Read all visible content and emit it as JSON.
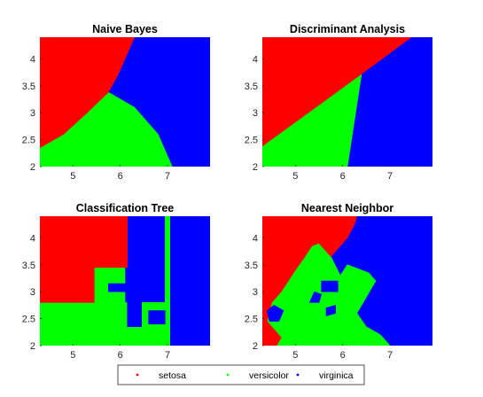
{
  "chart_data": [
    {
      "type": "area",
      "title": "Naive Bayes",
      "xlim": [
        4.3,
        7.9
      ],
      "ylim": [
        2.0,
        4.4
      ],
      "xticks": [
        "5",
        "6",
        "7"
      ],
      "yticks": [
        "2",
        "2.5",
        "3",
        "3.5",
        "4"
      ],
      "regions": [
        {
          "class": "virginica",
          "color": "#0000ff",
          "polygon": [
            [
              4.3,
              2.0
            ],
            [
              7.9,
              2.0
            ],
            [
              7.9,
              4.4
            ],
            [
              4.3,
              4.4
            ]
          ]
        },
        {
          "class": "versicolor",
          "color": "#00ff00",
          "polygon": [
            [
              4.3,
              2.0
            ],
            [
              7.1,
              2.0
            ],
            [
              6.8,
              2.6
            ],
            [
              6.3,
              3.1
            ],
            [
              5.75,
              3.38
            ],
            [
              5.3,
              3.0
            ],
            [
              4.8,
              2.6
            ],
            [
              4.3,
              2.35
            ]
          ]
        },
        {
          "class": "setosa",
          "color": "#ff0000",
          "polygon": [
            [
              4.3,
              2.35
            ],
            [
              4.8,
              2.6
            ],
            [
              5.3,
              3.0
            ],
            [
              5.75,
              3.38
            ],
            [
              5.95,
              3.7
            ],
            [
              6.3,
              4.4
            ],
            [
              4.3,
              4.4
            ]
          ]
        }
      ]
    },
    {
      "type": "area",
      "title": "Discriminant Analysis",
      "xlim": [
        4.3,
        7.9
      ],
      "ylim": [
        2.0,
        4.4
      ],
      "xticks": [
        "5",
        "6",
        "7"
      ],
      "yticks": [
        "2",
        "2.5",
        "3",
        "3.5",
        "4"
      ],
      "regions": [
        {
          "class": "virginica",
          "color": "#0000ff",
          "polygon": [
            [
              4.3,
              2.0
            ],
            [
              7.9,
              2.0
            ],
            [
              7.9,
              4.4
            ],
            [
              4.3,
              4.4
            ]
          ]
        },
        {
          "class": "versicolor",
          "color": "#00ff00",
          "polygon": [
            [
              4.3,
              2.0
            ],
            [
              6.1,
              2.0
            ],
            [
              6.4,
              3.72
            ],
            [
              4.3,
              2.38
            ]
          ]
        },
        {
          "class": "setosa",
          "color": "#ff0000",
          "polygon": [
            [
              4.3,
              2.38
            ],
            [
              6.4,
              3.72
            ],
            [
              7.45,
              4.4
            ],
            [
              4.3,
              4.4
            ]
          ]
        }
      ]
    },
    {
      "type": "area",
      "title": "Classification Tree",
      "xlim": [
        4.3,
        7.9
      ],
      "ylim": [
        2.0,
        4.4
      ],
      "xticks": [
        "5",
        "6",
        "7"
      ],
      "yticks": [
        "2",
        "2.5",
        "3",
        "3.5",
        "4"
      ],
      "regions": [
        {
          "class": "virginica",
          "color": "#0000ff",
          "polygon": [
            [
              4.3,
              2.0
            ],
            [
              7.9,
              2.0
            ],
            [
              7.9,
              4.4
            ],
            [
              4.3,
              4.4
            ]
          ]
        },
        {
          "class": "versicolor",
          "color": "#00ff00",
          "polygon": [
            [
              4.3,
              2.0
            ],
            [
              7.05,
              2.0
            ],
            [
              7.05,
              4.4
            ],
            [
              6.95,
              4.4
            ],
            [
              6.95,
              2.8
            ],
            [
              6.1,
              2.8
            ],
            [
              6.1,
              3.45
            ],
            [
              5.45,
              3.45
            ],
            [
              5.45,
              2.8
            ],
            [
              4.3,
              2.8
            ]
          ]
        },
        {
          "class": "setosa",
          "color": "#ff0000",
          "polygon": [
            [
              4.3,
              2.8
            ],
            [
              5.45,
              2.8
            ],
            [
              5.45,
              3.45
            ],
            [
              6.15,
              3.45
            ],
            [
              6.15,
              4.4
            ],
            [
              4.3,
              4.4
            ]
          ]
        },
        {
          "class": "virginica",
          "color": "#0000ff",
          "polygon": [
            [
              5.75,
              3.0
            ],
            [
              6.6,
              3.0
            ],
            [
              6.6,
              3.15
            ],
            [
              5.75,
              3.15
            ]
          ]
        },
        {
          "class": "virginica",
          "color": "#0000ff",
          "polygon": [
            [
              6.5,
              2.85
            ],
            [
              6.6,
              2.85
            ],
            [
              6.6,
              3.0
            ],
            [
              6.5,
              3.0
            ]
          ]
        },
        {
          "class": "virginica",
          "color": "#0000ff",
          "polygon": [
            [
              6.15,
              2.35
            ],
            [
              6.45,
              2.35
            ],
            [
              6.45,
              2.85
            ],
            [
              6.15,
              2.85
            ]
          ]
        },
        {
          "class": "virginica",
          "color": "#0000ff",
          "polygon": [
            [
              6.6,
              2.4
            ],
            [
              6.95,
              2.4
            ],
            [
              6.95,
              2.65
            ],
            [
              6.6,
              2.65
            ]
          ]
        }
      ]
    },
    {
      "type": "area",
      "title": "Nearest Neighbor",
      "xlim": [
        4.3,
        7.9
      ],
      "ylim": [
        2.0,
        4.4
      ],
      "xticks": [
        "5",
        "6",
        "7"
      ],
      "yticks": [
        "2",
        "2.5",
        "3",
        "3.5",
        "4"
      ],
      "regions": [
        {
          "class": "virginica",
          "color": "#0000ff",
          "polygon": [
            [
              4.3,
              2.0
            ],
            [
              7.9,
              2.0
            ],
            [
              7.9,
              4.4
            ],
            [
              4.3,
              4.4
            ]
          ]
        },
        {
          "class": "versicolor",
          "color": "#00ff00",
          "polygon": [
            [
              4.6,
              2.0
            ],
            [
              7.0,
              2.0
            ],
            [
              6.8,
              2.2
            ],
            [
              6.5,
              2.35
            ],
            [
              6.3,
              2.6
            ],
            [
              6.5,
              2.9
            ],
            [
              6.7,
              3.2
            ],
            [
              6.55,
              3.35
            ],
            [
              6.1,
              3.5
            ],
            [
              5.95,
              3.3
            ],
            [
              5.75,
              3.65
            ],
            [
              5.5,
              3.9
            ],
            [
              5.35,
              3.85
            ],
            [
              5.2,
              3.65
            ],
            [
              5.0,
              3.4
            ],
            [
              4.7,
              3.0
            ],
            [
              4.5,
              2.8
            ],
            [
              4.4,
              2.45
            ],
            [
              4.55,
              2.3
            ],
            [
              4.7,
              2.15
            ]
          ]
        },
        {
          "class": "setosa",
          "color": "#ff0000",
          "polygon": [
            [
              4.3,
              2.0
            ],
            [
              4.6,
              2.0
            ],
            [
              4.7,
              2.15
            ],
            [
              4.55,
              2.3
            ],
            [
              4.4,
              2.45
            ],
            [
              4.5,
              2.8
            ],
            [
              4.7,
              3.0
            ],
            [
              5.0,
              3.4
            ],
            [
              5.2,
              3.65
            ],
            [
              5.35,
              3.85
            ],
            [
              5.5,
              3.9
            ],
            [
              5.75,
              3.65
            ],
            [
              5.95,
              3.85
            ],
            [
              6.1,
              4.0
            ],
            [
              6.25,
              4.25
            ],
            [
              6.3,
              4.4
            ],
            [
              4.3,
              4.4
            ]
          ]
        },
        {
          "class": "virginica",
          "color": "#0000ff",
          "polygon": [
            [
              4.45,
              2.45
            ],
            [
              4.65,
              2.45
            ],
            [
              4.75,
              2.65
            ],
            [
              4.55,
              2.75
            ],
            [
              4.4,
              2.65
            ]
          ]
        },
        {
          "class": "virginica",
          "color": "#0000ff",
          "polygon": [
            [
              5.3,
              2.8
            ],
            [
              5.5,
              2.8
            ],
            [
              5.55,
              2.95
            ],
            [
              5.4,
              3.0
            ]
          ]
        },
        {
          "class": "virginica",
          "color": "#0000ff",
          "polygon": [
            [
              5.65,
              2.55
            ],
            [
              5.85,
              2.6
            ],
            [
              5.85,
              2.75
            ],
            [
              5.65,
              2.7
            ]
          ]
        },
        {
          "class": "virginica",
          "color": "#0000ff",
          "polygon": [
            [
              5.55,
              3.0
            ],
            [
              5.9,
              3.0
            ],
            [
              5.9,
              3.2
            ],
            [
              5.55,
              3.2
            ]
          ]
        }
      ]
    }
  ],
  "legend": {
    "entries": [
      {
        "label": "setosa",
        "color": "#ff0000"
      },
      {
        "label": "versicolor",
        "color": "#00ff00"
      },
      {
        "label": "virginica",
        "color": "#0000ff"
      }
    ]
  }
}
